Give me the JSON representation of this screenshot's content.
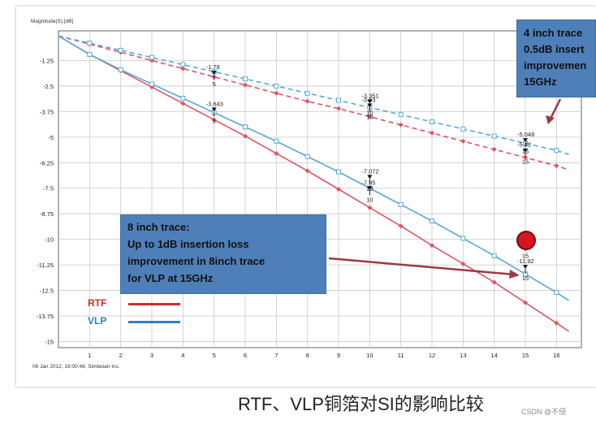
{
  "chart_data": {
    "type": "line",
    "ylabel": "Magnitude(S) [dB]",
    "xlim": [
      0,
      16.8
    ],
    "ylim": [
      -15.3,
      0.2
    ],
    "xticks": [
      1,
      2,
      3,
      4,
      5,
      6,
      7,
      8,
      9,
      10,
      11,
      12,
      13,
      14,
      15,
      16
    ],
    "yticks": [
      -1.25,
      -2.5,
      -3.75,
      -5,
      -6.25,
      -7.5,
      -8.75,
      -10,
      -11.25,
      -12.5,
      -13.75,
      -15
    ],
    "ytick_labels": [
      "-1.25",
      "-2.5",
      "-3.75",
      "-5",
      "-6.25",
      "-7.5",
      "-8.75",
      "-10",
      "-11.25",
      "-12.5",
      "-13.75",
      "-15"
    ],
    "grid": true,
    "series": [
      {
        "style": "solid",
        "color": "#e05563",
        "x": [
          0,
          1,
          2,
          3,
          4,
          5,
          6,
          7,
          8,
          9,
          10,
          11,
          12,
          13,
          14,
          15,
          16,
          16.4
        ],
        "y": [
          -0.05,
          -0.95,
          -1.75,
          -2.55,
          -3.35,
          -4.15,
          -4.95,
          -5.8,
          -6.65,
          -7.55,
          -8.45,
          -9.35,
          -10.3,
          -11.2,
          -12.1,
          -13.1,
          -14.1,
          -14.5
        ]
      },
      {
        "style": "solid",
        "color": "#59a8d8",
        "x": [
          0,
          1,
          2,
          3,
          4,
          5,
          6,
          7,
          8,
          9,
          10,
          11,
          12,
          13,
          14,
          15,
          16,
          16.4
        ],
        "y": [
          -0.05,
          -0.95,
          -1.7,
          -2.4,
          -3.1,
          -3.8,
          -4.5,
          -5.2,
          -5.95,
          -6.7,
          -7.5,
          -8.3,
          -9.1,
          -9.95,
          -10.8,
          -11.7,
          -12.6,
          -13.0
        ]
      },
      {
        "style": "dashed",
        "color": "#e05563",
        "x": [
          0,
          1,
          2,
          3,
          4,
          5,
          6,
          7,
          8,
          9,
          10,
          11,
          12,
          13,
          14,
          15,
          16,
          16.4
        ],
        "y": [
          -0.05,
          -0.45,
          -0.85,
          -1.25,
          -1.65,
          -2.05,
          -2.45,
          -2.85,
          -3.25,
          -3.6,
          -4.0,
          -4.4,
          -4.8,
          -5.2,
          -5.6,
          -6.0,
          -6.4,
          -6.6
        ]
      },
      {
        "style": "dashed",
        "color": "#59a8d8",
        "x": [
          0,
          1,
          2,
          3,
          4,
          5,
          6,
          7,
          8,
          9,
          10,
          11,
          12,
          13,
          14,
          15,
          16,
          16.4
        ],
        "y": [
          -0.05,
          -0.4,
          -0.75,
          -1.1,
          -1.45,
          -1.8,
          -2.15,
          -2.5,
          -2.85,
          -3.2,
          -3.55,
          -3.9,
          -4.25,
          -4.6,
          -4.95,
          -5.3,
          -5.65,
          -5.85
        ]
      }
    ],
    "markers": [
      {
        "x": 5,
        "y": -1.95,
        "label": "-1.78",
        "index": "5"
      },
      {
        "x": 5,
        "y": -3.75,
        "label": "-3.643",
        "index": "5"
      },
      {
        "x": 10,
        "y": -3.35,
        "label": "-3.351",
        "index": "10"
      },
      {
        "x": 10,
        "y": -3.55,
        "label": "-3.63",
        "index": "10"
      },
      {
        "x": 10,
        "y": -7.05,
        "label": "-7.072",
        "index": "10"
      },
      {
        "x": 10,
        "y": -7.6,
        "label": "-7.95",
        "index": "10"
      },
      {
        "x": 15,
        "y": -5.25,
        "label": "-5.048",
        "index": "15"
      },
      {
        "x": 15,
        "y": -5.75,
        "label": "-5.42",
        "index": "15"
      },
      {
        "x": 15,
        "y": -10.35,
        "label": "-9.81",
        "index": "15"
      },
      {
        "x": 15,
        "y": -11.45,
        "label": "-11.92",
        "index": "15"
      }
    ],
    "footer_text": "06 Jan 2012, 16:00:48, Simbeian Inc."
  },
  "callouts": {
    "inch4": {
      "line1": "4 inch trace",
      "line2": "0.5dB insert",
      "line3": "improvemen",
      "line4": "15GHz"
    },
    "inch8": {
      "line1": "8 inch trace:",
      "line2": "Up to 1dB insertion loss",
      "line3": "improvement in 8inch trace",
      "line4": "for VLP at 15GHz"
    }
  },
  "legend": {
    "rtf": {
      "label": "RTF",
      "color": "#d42a2a"
    },
    "vlp": {
      "label": "VLP",
      "color": "#2e7fc4"
    }
  },
  "caption": "RTF、VLP铜箔对SI的影响比较",
  "watermark": "CSDN @不侵"
}
